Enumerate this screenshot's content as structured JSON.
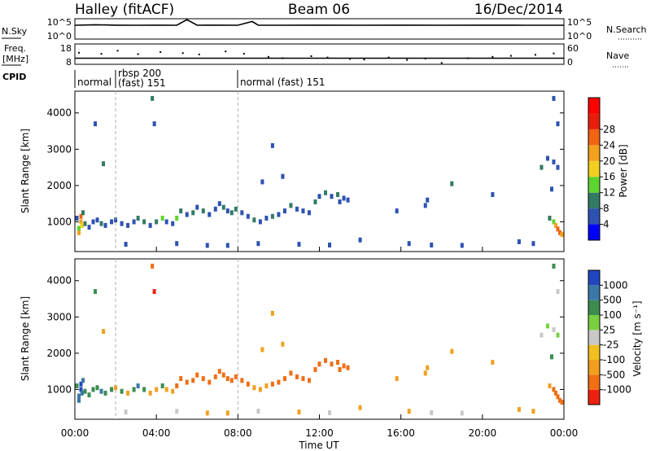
{
  "header": {
    "left": "Halley (fitACF)",
    "center": "Beam 06",
    "right": "16/Dec/2014"
  },
  "top_panels": {
    "nsky_label": "N.Sky",
    "nsky_ticks": [
      "10^5",
      "10^0"
    ],
    "nsearch_label": "N.Search",
    "nsearch_ticks": [
      "10^5",
      "10^0"
    ],
    "freq_label_top": "Freq.",
    "freq_label_unit": "[MHz]",
    "freq_ticks": [
      "18",
      "8"
    ],
    "nave_label": "Nave",
    "nave_ticks": [
      "60",
      "0"
    ],
    "cpid_label": "CPID",
    "cpid_segments": [
      {
        "text": "normal",
        "start_h": 0.0
      },
      {
        "text": "rbsp 200",
        "start_h": 2.0,
        "line2": "(fast) 151"
      },
      {
        "text": "normal (fast) 151",
        "start_h": 8.0
      }
    ]
  },
  "axes": {
    "xlabel": "Time UT",
    "xticks": [
      "00:00",
      "04:00",
      "08:00",
      "12:00",
      "16:00",
      "20:00",
      "00:00"
    ],
    "ylabel": "Slant Range [km]",
    "yticks": [
      "1000",
      "2000",
      "3000",
      "4000"
    ]
  },
  "colorbars": {
    "power": {
      "label": "Power [dB]",
      "ticks": [
        "4",
        "8",
        "12",
        "16",
        "20",
        "24",
        "28"
      ],
      "colors": [
        "#0000ff",
        "#2d52b0",
        "#327a64",
        "#5ed430",
        "#f0d020",
        "#f5a01e",
        "#f06414",
        "#e81e0a",
        "#ff0000"
      ]
    },
    "velocity": {
      "label": "Velocity [m s⁻¹]",
      "ticks": [
        "1000",
        "500",
        "100",
        "25",
        "-25",
        "-100",
        "-500",
        "-1000"
      ],
      "colors": [
        "#2246c0",
        "#3a78a8",
        "#3c8c50",
        "#78d040",
        "#c8c8c8",
        "#f0c020",
        "#f0a01e",
        "#f06e14",
        "#f02010"
      ]
    }
  },
  "chart_data": [
    {
      "type": "line",
      "title": "N.Sky / N.Search",
      "x_range_h": [
        0,
        24
      ],
      "ylim": [
        1,
        100000
      ],
      "y_scale": "log",
      "series": [
        {
          "name": "N.Sky",
          "x_h": [
            0,
            1,
            2,
            3,
            4,
            5,
            5.5,
            6,
            7,
            8,
            8.7,
            9,
            10,
            12,
            14,
            16,
            18,
            20,
            22,
            24
          ],
          "y": [
            3000,
            4000,
            3200,
            3000,
            3200,
            3000,
            90000,
            3000,
            3200,
            3000,
            30000,
            3200,
            3000,
            3100,
            3000,
            3200,
            3000,
            3100,
            3000,
            3000
          ]
        }
      ]
    },
    {
      "type": "scatter",
      "title": "Freq. / Nave",
      "x_range_h": [
        0,
        24
      ],
      "freq_ylim": [
        8,
        18
      ],
      "nave_ylim": [
        0,
        60
      ],
      "series": [
        {
          "name": "Freq.",
          "x_h": [
            0,
            24
          ],
          "y": [
            11,
            11
          ]
        },
        {
          "name": "Nave",
          "x_h": [
            0.2,
            1.3,
            2.1,
            3.1,
            4.2,
            5.3,
            6.1,
            7.4,
            8.3,
            9.5,
            10.2,
            11.6,
            12.4,
            13.5,
            14.2,
            15.4,
            16.3,
            17.2,
            18.0,
            19.3,
            20.5,
            21.4,
            22.6,
            23.5
          ],
          "y": [
            34,
            31,
            40,
            30,
            36,
            33,
            29,
            38,
            31,
            22,
            18,
            24,
            20,
            16,
            14,
            20,
            13,
            17,
            4,
            18,
            22,
            25,
            28,
            32
          ]
        }
      ]
    },
    {
      "type": "scatter",
      "title": "Power",
      "xlabel": "Time UT",
      "ylabel": "Slant Range [km]",
      "x_range_h": [
        0,
        24
      ],
      "ylim": [
        180,
        4600
      ],
      "value_label": "Power [dB]",
      "value_range": [
        0,
        32
      ],
      "points": [
        [
          0.2,
          700,
          18
        ],
        [
          0.2,
          820,
          12
        ],
        [
          0.3,
          1000,
          18
        ],
        [
          0.3,
          1150,
          22
        ],
        [
          0.35,
          900,
          16
        ],
        [
          0.4,
          1250,
          10
        ],
        [
          0.1,
          1100,
          6
        ],
        [
          0.5,
          950,
          8
        ],
        [
          0.7,
          850,
          6
        ],
        [
          0.9,
          1000,
          5
        ],
        [
          1.1,
          1050,
          6
        ],
        [
          1.3,
          950,
          8
        ],
        [
          1.5,
          900,
          6
        ],
        [
          1.8,
          1000,
          6
        ],
        [
          2.0,
          1050,
          5
        ],
        [
          2.3,
          950,
          6
        ],
        [
          2.6,
          900,
          5
        ],
        [
          2.9,
          1000,
          6
        ],
        [
          3.1,
          1100,
          8
        ],
        [
          3.4,
          1000,
          10
        ],
        [
          3.7,
          900,
          6
        ],
        [
          4.0,
          1000,
          8
        ],
        [
          4.3,
          1100,
          14
        ],
        [
          4.5,
          1000,
          6
        ],
        [
          4.8,
          950,
          6
        ],
        [
          5.0,
          1100,
          12
        ],
        [
          5.2,
          1300,
          8
        ],
        [
          5.5,
          1200,
          6
        ],
        [
          5.8,
          1250,
          10
        ],
        [
          6.0,
          1400,
          6
        ],
        [
          6.3,
          1300,
          8
        ],
        [
          6.6,
          1200,
          6
        ],
        [
          6.9,
          1350,
          6
        ],
        [
          7.1,
          1500,
          6
        ],
        [
          7.3,
          1400,
          8
        ],
        [
          7.5,
          1300,
          6
        ],
        [
          7.7,
          1250,
          10
        ],
        [
          7.9,
          1350,
          8
        ],
        [
          8.2,
          1250,
          6
        ],
        [
          8.5,
          1150,
          6
        ],
        [
          8.8,
          1050,
          8
        ],
        [
          9.1,
          1000,
          6
        ],
        [
          9.4,
          1100,
          6
        ],
        [
          9.7,
          1150,
          8
        ],
        [
          10.0,
          1200,
          6
        ],
        [
          10.3,
          1300,
          6
        ],
        [
          10.6,
          1450,
          8
        ],
        [
          10.9,
          1350,
          6
        ],
        [
          11.2,
          1300,
          6
        ],
        [
          11.5,
          1250,
          6
        ],
        [
          11.8,
          1550,
          8
        ],
        [
          12.0,
          1700,
          6
        ],
        [
          12.3,
          1800,
          8
        ],
        [
          12.6,
          1700,
          6
        ],
        [
          12.9,
          1750,
          8
        ],
        [
          13.2,
          1650,
          6
        ],
        [
          13.4,
          1600,
          6
        ],
        [
          1.0,
          3700,
          6
        ],
        [
          1.4,
          2600,
          8
        ],
        [
          3.8,
          4400,
          8
        ],
        [
          3.9,
          3700,
          6
        ],
        [
          9.7,
          3100,
          6
        ],
        [
          9.2,
          2100,
          6
        ],
        [
          10.2,
          2250,
          6
        ],
        [
          13.0,
          1550,
          6
        ],
        [
          15.8,
          1300,
          6
        ],
        [
          17.2,
          1450,
          6
        ],
        [
          17.3,
          1600,
          6
        ],
        [
          18.5,
          2050,
          10
        ],
        [
          20.5,
          1750,
          6
        ],
        [
          22.9,
          2500,
          8
        ],
        [
          23.2,
          2750,
          6
        ],
        [
          23.5,
          2650,
          6
        ],
        [
          23.7,
          2500,
          6
        ],
        [
          23.5,
          1000,
          14
        ],
        [
          23.6,
          900,
          18
        ],
        [
          23.7,
          800,
          22
        ],
        [
          23.8,
          700,
          24
        ],
        [
          23.9,
          650,
          20
        ],
        [
          23.3,
          1100,
          10
        ],
        [
          23.4,
          1900,
          6
        ],
        [
          23.7,
          3700,
          6
        ],
        [
          23.5,
          4400,
          6
        ],
        [
          14.0,
          500,
          6
        ],
        [
          16.4,
          400,
          6
        ],
        [
          19.0,
          350,
          4
        ],
        [
          21.8,
          450,
          6
        ],
        [
          22.5,
          400,
          6
        ],
        [
          5.0,
          400,
          6
        ],
        [
          6.5,
          350,
          6
        ],
        [
          9.0,
          400,
          4
        ],
        [
          11.0,
          380,
          6
        ],
        [
          12.5,
          360,
          6
        ],
        [
          2.5,
          380,
          6
        ],
        [
          7.5,
          350,
          6
        ],
        [
          17.5,
          360,
          6
        ]
      ]
    },
    {
      "type": "scatter",
      "title": "Velocity",
      "xlabel": "Time UT",
      "ylabel": "Slant Range [km]",
      "x_range_h": [
        0,
        24
      ],
      "ylim": [
        180,
        4600
      ],
      "value_label": "Velocity [m s⁻¹]",
      "value_range": [
        -1000,
        1000
      ],
      "points": [
        [
          0.2,
          700,
          300
        ],
        [
          0.2,
          820,
          150
        ],
        [
          0.3,
          1000,
          500
        ],
        [
          0.3,
          1150,
          800
        ],
        [
          0.35,
          900,
          120
        ],
        [
          0.4,
          1250,
          300
        ],
        [
          0.1,
          1100,
          60
        ],
        [
          0.5,
          950,
          40
        ],
        [
          0.7,
          850,
          60
        ],
        [
          0.9,
          1000,
          40
        ],
        [
          1.1,
          1050,
          80
        ],
        [
          1.3,
          950,
          120
        ],
        [
          1.5,
          900,
          60
        ],
        [
          1.8,
          1000,
          30
        ],
        [
          2.0,
          1050,
          -60
        ],
        [
          2.3,
          950,
          40
        ],
        [
          2.6,
          900,
          -40
        ],
        [
          2.9,
          1000,
          80
        ],
        [
          3.1,
          1100,
          150
        ],
        [
          3.4,
          1000,
          60
        ],
        [
          3.7,
          900,
          -60
        ],
        [
          4.0,
          1000,
          -80
        ],
        [
          4.3,
          1100,
          40
        ],
        [
          4.5,
          1000,
          -40
        ],
        [
          4.8,
          950,
          -80
        ],
        [
          5.0,
          1100,
          -150
        ],
        [
          5.2,
          1300,
          -200
        ],
        [
          5.5,
          1200,
          -250
        ],
        [
          5.8,
          1250,
          -300
        ],
        [
          6.0,
          1400,
          -250
        ],
        [
          6.3,
          1300,
          -200
        ],
        [
          6.6,
          1200,
          -250
        ],
        [
          6.9,
          1350,
          -300
        ],
        [
          7.1,
          1500,
          -250
        ],
        [
          7.3,
          1400,
          -300
        ],
        [
          7.5,
          1300,
          -250
        ],
        [
          7.7,
          1250,
          -200
        ],
        [
          7.9,
          1350,
          -150
        ],
        [
          8.2,
          1250,
          -200
        ],
        [
          8.5,
          1150,
          -150
        ],
        [
          8.8,
          1050,
          -100
        ],
        [
          9.1,
          1000,
          -80
        ],
        [
          9.4,
          1100,
          -100
        ],
        [
          9.7,
          1150,
          -150
        ],
        [
          10.0,
          1200,
          -200
        ],
        [
          10.3,
          1300,
          -250
        ],
        [
          10.6,
          1450,
          -200
        ],
        [
          10.9,
          1350,
          -150
        ],
        [
          11.2,
          1300,
          -200
        ],
        [
          11.5,
          1250,
          -150
        ],
        [
          11.8,
          1550,
          -250
        ],
        [
          12.0,
          1700,
          -300
        ],
        [
          12.3,
          1800,
          -350
        ],
        [
          12.6,
          1700,
          -300
        ],
        [
          12.9,
          1750,
          -250
        ],
        [
          13.2,
          1650,
          -200
        ],
        [
          13.4,
          1600,
          -150
        ],
        [
          1.0,
          3700,
          40
        ],
        [
          1.4,
          2600,
          -60
        ],
        [
          3.8,
          4400,
          -400
        ],
        [
          3.9,
          3700,
          -700
        ],
        [
          9.7,
          3100,
          -30
        ],
        [
          9.2,
          2100,
          -60
        ],
        [
          10.2,
          2250,
          -40
        ],
        [
          13.0,
          1550,
          -200
        ],
        [
          15.8,
          1300,
          -60
        ],
        [
          17.2,
          1450,
          -80
        ],
        [
          17.3,
          1600,
          -60
        ],
        [
          18.5,
          2050,
          -80
        ],
        [
          20.5,
          1750,
          -40
        ],
        [
          22.9,
          2500,
          0
        ],
        [
          23.2,
          2750,
          10
        ],
        [
          23.5,
          2650,
          0
        ],
        [
          23.7,
          2500,
          15
        ],
        [
          23.5,
          1000,
          -150
        ],
        [
          23.6,
          900,
          -200
        ],
        [
          23.7,
          800,
          -250
        ],
        [
          23.8,
          700,
          -300
        ],
        [
          23.9,
          650,
          -350
        ],
        [
          23.3,
          1100,
          -100
        ],
        [
          23.4,
          1900,
          40
        ],
        [
          23.7,
          3700,
          0
        ],
        [
          23.5,
          4400,
          60
        ],
        [
          14.0,
          500,
          -60
        ],
        [
          16.4,
          400,
          -40
        ],
        [
          19.0,
          350,
          0
        ],
        [
          21.8,
          450,
          -60
        ],
        [
          22.5,
          400,
          -40
        ],
        [
          5.0,
          400,
          0
        ],
        [
          6.5,
          350,
          -40
        ],
        [
          9.0,
          400,
          0
        ],
        [
          11.0,
          380,
          -60
        ],
        [
          12.5,
          360,
          0
        ],
        [
          2.5,
          380,
          0
        ],
        [
          7.5,
          350,
          -40
        ],
        [
          17.5,
          360,
          0
        ]
      ]
    }
  ]
}
